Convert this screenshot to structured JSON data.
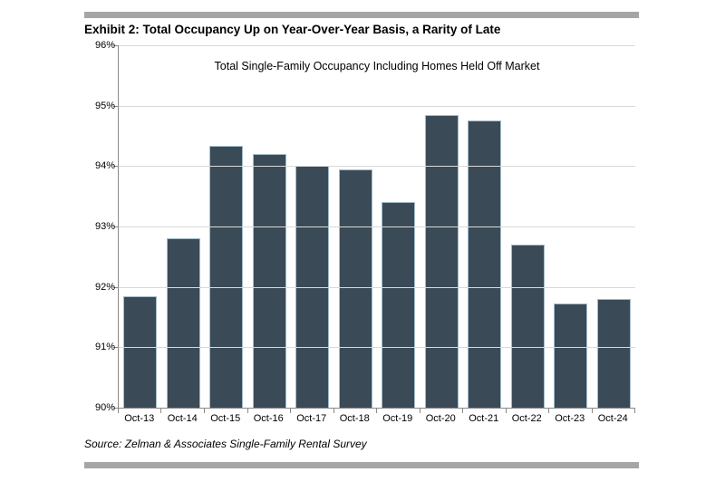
{
  "header": {
    "title": "Exhibit 2: Total Occupancy Up on Year-Over-Year Basis, a Rarity of Late"
  },
  "chart_data": {
    "type": "bar",
    "title": "Total Single-Family Occupancy Including Homes Held Off Market",
    "categories": [
      "Oct-13",
      "Oct-14",
      "Oct-15",
      "Oct-16",
      "Oct-17",
      "Oct-18",
      "Oct-19",
      "Oct-20",
      "Oct-21",
      "Oct-22",
      "Oct-23",
      "Oct-24"
    ],
    "values": [
      91.85,
      92.8,
      94.33,
      94.2,
      94.0,
      93.95,
      93.4,
      94.85,
      94.75,
      92.7,
      91.72,
      91.8
    ],
    "unit": "%",
    "xlabel": "",
    "ylabel": "",
    "ylim": [
      90,
      96
    ],
    "ytick_step": 1,
    "ytick_labels": [
      "96%",
      "95%",
      "94%",
      "93%",
      "92%",
      "91%",
      "90%"
    ],
    "grid": "horizontal",
    "legend": "none",
    "bar_color": "#3a4a57",
    "bar_border_color": "#a3bccb",
    "gridline_color": "#d9d9d9",
    "axis_color": "#8a8a8a"
  },
  "footer": {
    "source": "Source: Zelman & Associates Single-Family Rental Survey"
  },
  "decorations": {
    "rule_color": "#a6a6a6"
  }
}
